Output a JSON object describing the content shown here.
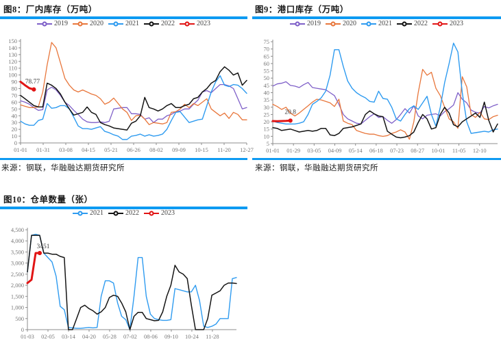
{
  "page": {
    "accent_color": "#0d9af2",
    "background": "#ffffff"
  },
  "styles": {
    "axis_color": "#8c8c8c",
    "tick_label_color": "#767676",
    "annotation_color": "#3d3d3d",
    "legend_text_color": "#3d3d3d"
  },
  "charts": [
    {
      "id": "chart8",
      "title": "图8：厂内库存（万吨）",
      "source": "来源：钢联，华融融达期货研究所",
      "chart_data": {
        "type": "line",
        "title": "厂内库存（万吨）",
        "ylim": [
          0,
          150
        ],
        "y_step": 10,
        "thousands": false,
        "grid": false,
        "legend_position": "top-center",
        "x_tick_labels": [
          "01-01",
          "01-31",
          "03-08",
          "04-15",
          "05-21",
          "06-26",
          "08-02",
          "09-09",
          "10-15",
          "11-20",
          "12-27"
        ],
        "tick_span": 1.0,
        "n_points": 52,
        "series": [
          {
            "name": "2019",
            "color": "#7E5FC8",
            "width": 1.3,
            "values": [
              62,
              60,
              57,
              52,
              48,
              49,
              78,
              82,
              78,
              70,
              60,
              55,
              48,
              42,
              35,
              31,
              30,
              30,
              31,
              30,
              32,
              50,
              51,
              52,
              52,
              43,
              43,
              42,
              35,
              37,
              30,
              35,
              35,
              40,
              42,
              46,
              47,
              50,
              50,
              57,
              63,
              75,
              77,
              74,
              80,
              86,
              86,
              84,
              80,
              65,
              50,
              52
            ]
          },
          {
            "name": "2020",
            "color": "#E8763B",
            "width": 1.3,
            "values": [
              56,
              54,
              52,
              52,
              53,
              75,
              115,
              148,
              140,
              118,
              95,
              85,
              78,
              75,
              78,
              75,
              72,
              70,
              65,
              57,
              60,
              66,
              58,
              50,
              45,
              33,
              40,
              41,
              35,
              27,
              30,
              29,
              28,
              30,
              45,
              46,
              50,
              57,
              52,
              58,
              55,
              60,
              65,
              50,
              45,
              40,
              44,
              36,
              45,
              42,
              34,
              34
            ]
          },
          {
            "name": "2021",
            "color": "#2E9BF0",
            "width": 1.4,
            "values": [
              32,
              28,
              26,
              26,
              33,
              35,
              58,
              51,
              52,
              55,
              55,
              50,
              38,
              25,
              21,
              21,
              20,
              22,
              24,
              17,
              15,
              12,
              10,
              5,
              5,
              10,
              11,
              13,
              10,
              12,
              10,
              11,
              13,
              20,
              33,
              45,
              46,
              38,
              30,
              32,
              34,
              35,
              55,
              75,
              90,
              99,
              85,
              83,
              86,
              85,
              80,
              73
            ]
          },
          {
            "name": "2022",
            "color": "#141414",
            "width": 1.5,
            "values": [
              70,
              65,
              60,
              55,
              53,
              53,
              88,
              85,
              80,
              72,
              60,
              50,
              41,
              43,
              45,
              53,
              45,
              42,
              30,
              27,
              25,
              22,
              21,
              20,
              19,
              29,
              32,
              40,
              67,
              52,
              50,
              47,
              50,
              55,
              58,
              52,
              52,
              55,
              57,
              65,
              67,
              75,
              80,
              88,
              92,
              105,
              112,
              107,
              100,
              103,
              85,
              92
            ]
          },
          {
            "name": "2023",
            "color": "#E11414",
            "width": 3,
            "end_dot": true,
            "annotation": {
              "text": "78.77",
              "dx": -2,
              "dy": -9
            },
            "values": [
              90,
              85,
              80.5,
              78.77
            ]
          }
        ]
      }
    },
    {
      "id": "chart9",
      "title": "图9：港口库存（万吨）",
      "source": "来源：钢联，华融融达期货研究所",
      "chart_data": {
        "type": "line",
        "title": "港口库存（万吨）",
        "ylim": [
          5,
          75
        ],
        "y_step": 5,
        "thousands": false,
        "grid": false,
        "legend_position": "top-center",
        "x_tick_labels": [
          "01-01",
          "01-29",
          "03-05",
          "04-09",
          "05-14",
          "06-18",
          "07-23",
          "08-27",
          "10-01",
          "11-05",
          "12-10"
        ],
        "tick_span": 0.92,
        "n_points": 52,
        "series": [
          {
            "name": "2019",
            "color": "#7E5FC8",
            "width": 1.3,
            "values": [
              44.5,
              46,
              46.5,
              47.5,
              45,
              44.5,
              43.5,
              45.5,
              47,
              43.5,
              43,
              42.5,
              42,
              40,
              38,
              32,
              25,
              22,
              20.5,
              19,
              18.5,
              21,
              23.5,
              25.5,
              23,
              23.5,
              21,
              19,
              21.5,
              25,
              29,
              26,
              31,
              24,
              22,
              24.5,
              25,
              25.5,
              24,
              27,
              29,
              31.5,
              40,
              35.5,
              33,
              28,
              26.5,
              26,
              30.5,
              29.5,
              31,
              32
            ]
          },
          {
            "name": "2020",
            "color": "#E8763B",
            "width": 1.3,
            "values": [
              32,
              30.5,
              28.5,
              30,
              26,
              24,
              26,
              28.5,
              31,
              33.5,
              35.5,
              35,
              34,
              33,
              30.5,
              35.5,
              20.5,
              19,
              18,
              14,
              13,
              12,
              11.5,
              11.5,
              10.5,
              10,
              10.5,
              12,
              13,
              14.5,
              13,
              8,
              20,
              40,
              56,
              52,
              54,
              43,
              38,
              30,
              22,
              20,
              15.5,
              51,
              44,
              25,
              23,
              26.5,
              22,
              21.5,
              23.5,
              24.5
            ]
          },
          {
            "name": "2021",
            "color": "#2E9BF0",
            "width": 1.4,
            "values": [
              20.5,
              19.5,
              19,
              18.5,
              18.5,
              18.5,
              19,
              20,
              25,
              32,
              34,
              36.5,
              41,
              52,
              69.5,
              69.5,
              58,
              48,
              43,
              40,
              38,
              36.5,
              34,
              33.5,
              41,
              36,
              35.5,
              30,
              22,
              20.5,
              25,
              29,
              31,
              28.5,
              33,
              37.5,
              25,
              17,
              30,
              47,
              60,
              74,
              68,
              40,
              20,
              12,
              12.5,
              13,
              13.5,
              13,
              14.5,
              15
            ]
          },
          {
            "name": "2022",
            "color": "#141414",
            "width": 1.5,
            "values": [
              16,
              15.5,
              14,
              14.5,
              15,
              14,
              13,
              13.5,
              14,
              13.5,
              14,
              15.5,
              15.5,
              11,
              10.5,
              12,
              15.5,
              16,
              16.5,
              17.5,
              18.5,
              25,
              27.5,
              25.5,
              24,
              23.5,
              13.5,
              11.5,
              9.5,
              9,
              9.5,
              10.5,
              13,
              19.5,
              25,
              22,
              15,
              16,
              25,
              30,
              26,
              18,
              16.5,
              20,
              22,
              24,
              26,
              23,
              33.5,
              21,
              13,
              18.5
            ]
          },
          {
            "name": "2023",
            "color": "#E11414",
            "width": 3,
            "end_dot": true,
            "annotation": {
              "text": "20.8",
              "dx": 0,
              "dy": -10
            },
            "values": [
              20.5,
              20.4,
              20.5,
              20.6,
              20.8
            ]
          }
        ]
      }
    },
    {
      "id": "chart10",
      "title": "图10：仓单数量（张）",
      "source": "",
      "chart_data": {
        "type": "line",
        "title": "仓单数量（张）",
        "ylim": [
          0,
          4500
        ],
        "y_step": 500,
        "thousands": true,
        "grid": false,
        "legend_position": "top-center",
        "x_tick_labels": [
          "01-03",
          "02-05",
          "03-14",
          "04-20",
          "05-28",
          "07-02",
          "08-06",
          "09-10",
          "10-24",
          "11-28"
        ],
        "tick_span": 0.885,
        "n_points": 52,
        "series": [
          {
            "name": "2021",
            "color": "#2E9BF0",
            "width": 1.4,
            "values": [
              2600,
              4250,
              4300,
              4250,
              3450,
              3250,
              3050,
              2400,
              1050,
              900,
              100,
              80,
              60,
              60,
              80,
              100,
              80,
              100,
              1500,
              2200,
              2200,
              2100,
              1200,
              600,
              450,
              0,
              1500,
              3250,
              3250,
              1500,
              700,
              500,
              450,
              420,
              420,
              450,
              1850,
              1800,
              1750,
              1700,
              1700,
              2000,
              1300,
              150,
              100,
              150,
              250,
              500,
              500,
              500,
              2300,
              2350
            ]
          },
          {
            "name": "2022",
            "color": "#141414",
            "width": 1.5,
            "values": [
              2600,
              4250,
              4250,
              4250,
              3450,
              3450,
              3400,
              3400,
              3300,
              3250,
              0,
              0,
              500,
              1000,
              1100,
              950,
              850,
              700,
              800,
              1000,
              1450,
              1550,
              1500,
              1200,
              800,
              0,
              600,
              780,
              780,
              500,
              450,
              400,
              420,
              800,
              1500,
              2000,
              2900,
              2600,
              2500,
              2300,
              1100,
              0,
              0,
              0,
              500,
              1550,
              1650,
              1750,
              2000,
              2100,
              2100,
              2080
            ]
          },
          {
            "name": "2023",
            "color": "#E11414",
            "width": 3,
            "end_dot": true,
            "annotation": {
              "text": "3451",
              "dx": 5,
              "dy": -7
            },
            "values": [
              2100,
              2250,
              3451,
              3451
            ]
          }
        ]
      }
    }
  ]
}
